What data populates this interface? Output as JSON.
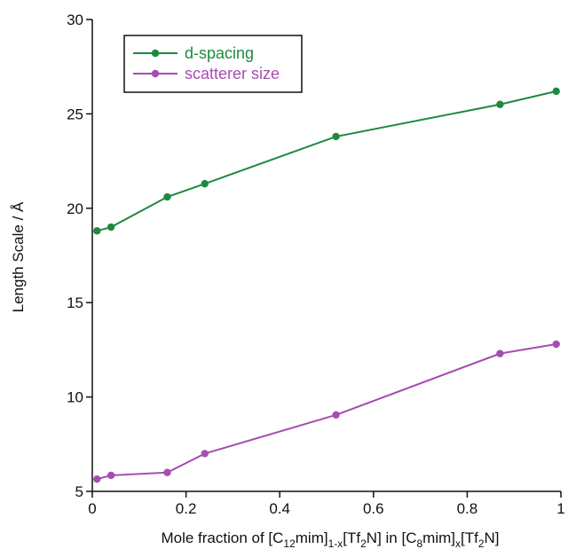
{
  "chart_data": {
    "type": "line",
    "title": "",
    "xlabel": "Mole fraction of [C12mim]1-x[Tf2N] in [C8mim]x[Tf2N]",
    "xlabel_parts": {
      "t1": "Mole fraction of [C",
      "s1": "12",
      "t2": "mim]",
      "s2": "1-x",
      "t3": "[Tf",
      "s3": "2",
      "t4": "N] in [C",
      "s4": "8",
      "t5": "mim]",
      "s5": "x",
      "t6": "[Tf",
      "s6": "2",
      "t7": "N]"
    },
    "ylabel": "Length Scale / Å",
    "xlim": [
      0,
      1
    ],
    "ylim": [
      5,
      30
    ],
    "xticks": [
      0,
      0.2,
      0.4,
      0.6,
      0.8,
      1
    ],
    "xtick_labels": [
      "0",
      "0.2",
      "0.4",
      "0.6",
      "0.8",
      "1"
    ],
    "yticks": [
      5,
      10,
      15,
      20,
      25,
      30
    ],
    "ytick_labels": [
      "5",
      "10",
      "15",
      "20",
      "25",
      "30"
    ],
    "grid": false,
    "legend": "top-left",
    "series": [
      {
        "name": "d-spacing",
        "color": "#1e8a3c",
        "x": [
          0.01,
          0.04,
          0.16,
          0.24,
          0.52,
          0.87,
          0.99
        ],
        "y": [
          18.8,
          19.0,
          20.6,
          21.3,
          23.8,
          25.5,
          26.2
        ]
      },
      {
        "name": "scatterer size",
        "color": "#a64db0",
        "x": [
          0.01,
          0.04,
          0.16,
          0.24,
          0.52,
          0.87,
          0.99
        ],
        "y": [
          5.65,
          5.85,
          6.0,
          7.0,
          9.05,
          12.3,
          12.8
        ]
      }
    ]
  }
}
